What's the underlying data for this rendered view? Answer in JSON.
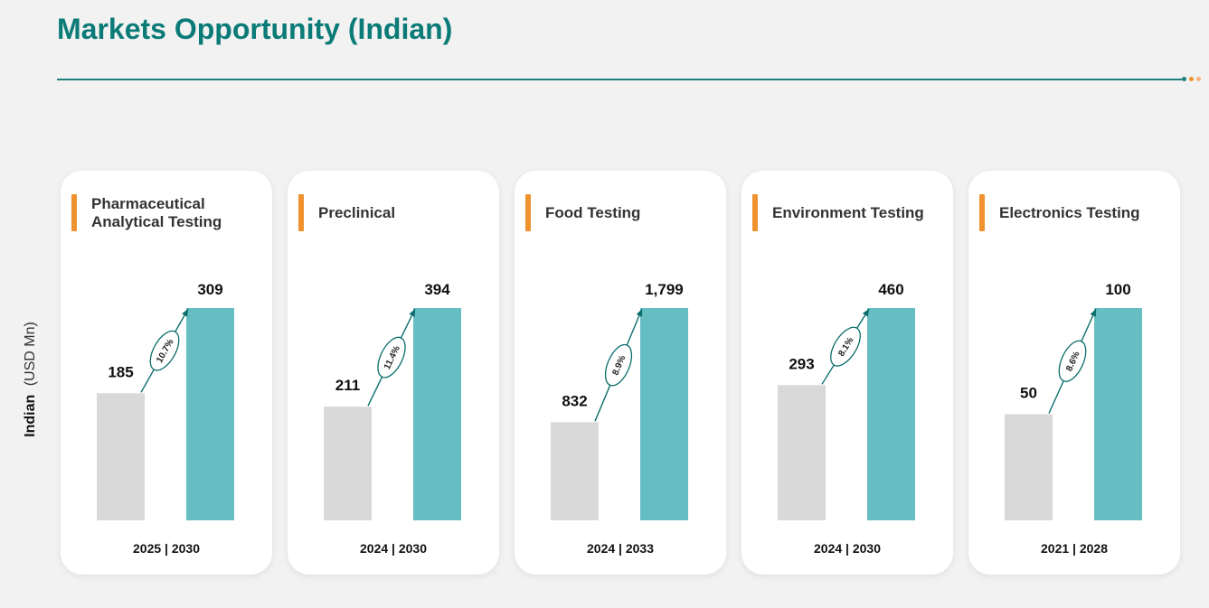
{
  "header": {
    "title": "Markets Opportunity (Indian)"
  },
  "y_axis": {
    "label_bold": "Indian",
    "label_unit": "(USD Mn)"
  },
  "colors": {
    "title": "#0b7b78",
    "rule": "#1f7f7c",
    "accent": "#f0922e",
    "base_bar": "#d9d9d9",
    "forecast_bar": "#66bec2",
    "cagr_stroke": "#0b6e6b",
    "dot_colors": [
      "#1f7f7c",
      "#f0922e",
      "#f3b37a"
    ]
  },
  "chart_data": [
    {
      "type": "bar",
      "title": "Pharmaceutical Analytical Testing",
      "categories": [
        "2025",
        "2030"
      ],
      "values": [
        185,
        309
      ],
      "value_labels": [
        "185",
        "309"
      ],
      "cagr": "10.7%",
      "period_label": "2025 | 2030",
      "ylim": [
        0,
        309
      ]
    },
    {
      "type": "bar",
      "title": "Preclinical",
      "categories": [
        "2024",
        "2030"
      ],
      "values": [
        211,
        394
      ],
      "value_labels": [
        "211",
        "394"
      ],
      "cagr": "11.4%",
      "period_label": "2024 | 2030",
      "ylim": [
        0,
        394
      ]
    },
    {
      "type": "bar",
      "title": "Food Testing",
      "categories": [
        "2024",
        "2033"
      ],
      "values": [
        832,
        1799
      ],
      "value_labels": [
        "832",
        "1,799"
      ],
      "cagr": "8.9%",
      "period_label": "2024 | 2033",
      "ylim": [
        0,
        1799
      ]
    },
    {
      "type": "bar",
      "title": "Environment Testing",
      "categories": [
        "2024",
        "2030"
      ],
      "values": [
        293,
        460
      ],
      "value_labels": [
        "293",
        "460"
      ],
      "cagr": "8.1%",
      "period_label": "2024 | 2030",
      "ylim": [
        0,
        460
      ]
    },
    {
      "type": "bar",
      "title": "Electronics Testing",
      "categories": [
        "2021",
        "2028"
      ],
      "values": [
        50,
        100
      ],
      "value_labels": [
        "50",
        "100"
      ],
      "cagr": "8.6%",
      "period_label": "2021 | 2028",
      "ylim": [
        0,
        100
      ]
    }
  ]
}
